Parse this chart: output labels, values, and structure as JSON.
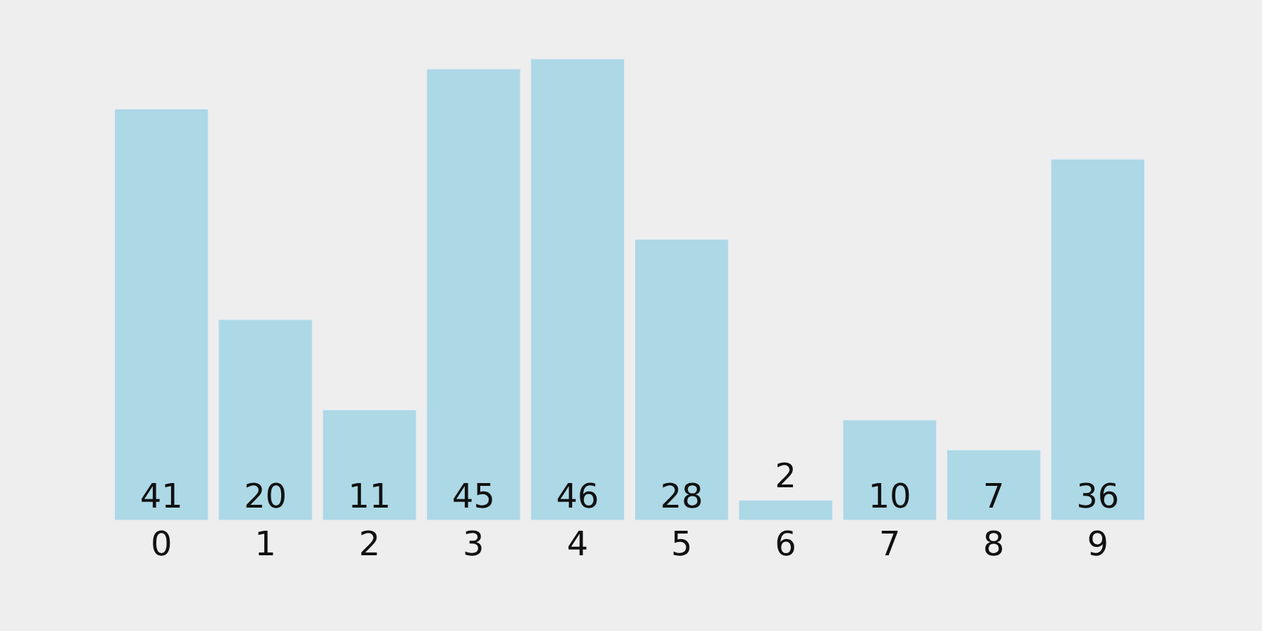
{
  "chart_data": {
    "type": "bar",
    "categories": [
      "0",
      "1",
      "2",
      "3",
      "4",
      "5",
      "6",
      "7",
      "8",
      "9"
    ],
    "values": [
      41,
      20,
      11,
      45,
      46,
      28,
      2,
      10,
      7,
      36
    ],
    "color": "#add8e6",
    "data_labels": true,
    "grid": false,
    "legend": false
  }
}
